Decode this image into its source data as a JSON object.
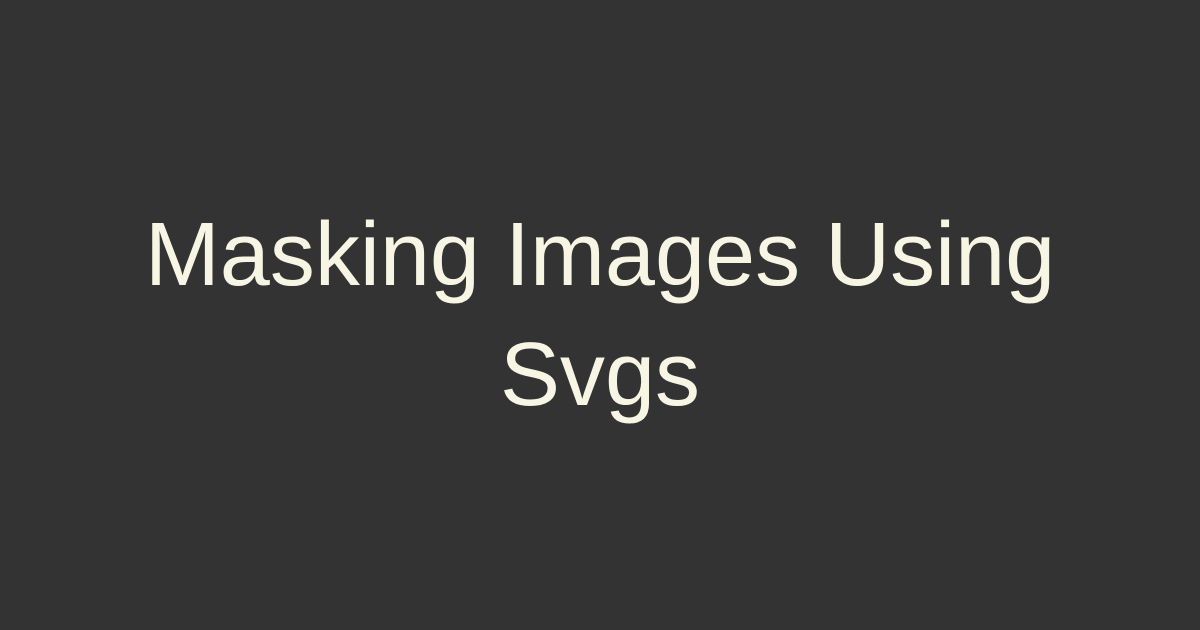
{
  "title": "Masking Images Using Svgs",
  "colors": {
    "background": "#333333",
    "text": "#f7f6e4"
  }
}
